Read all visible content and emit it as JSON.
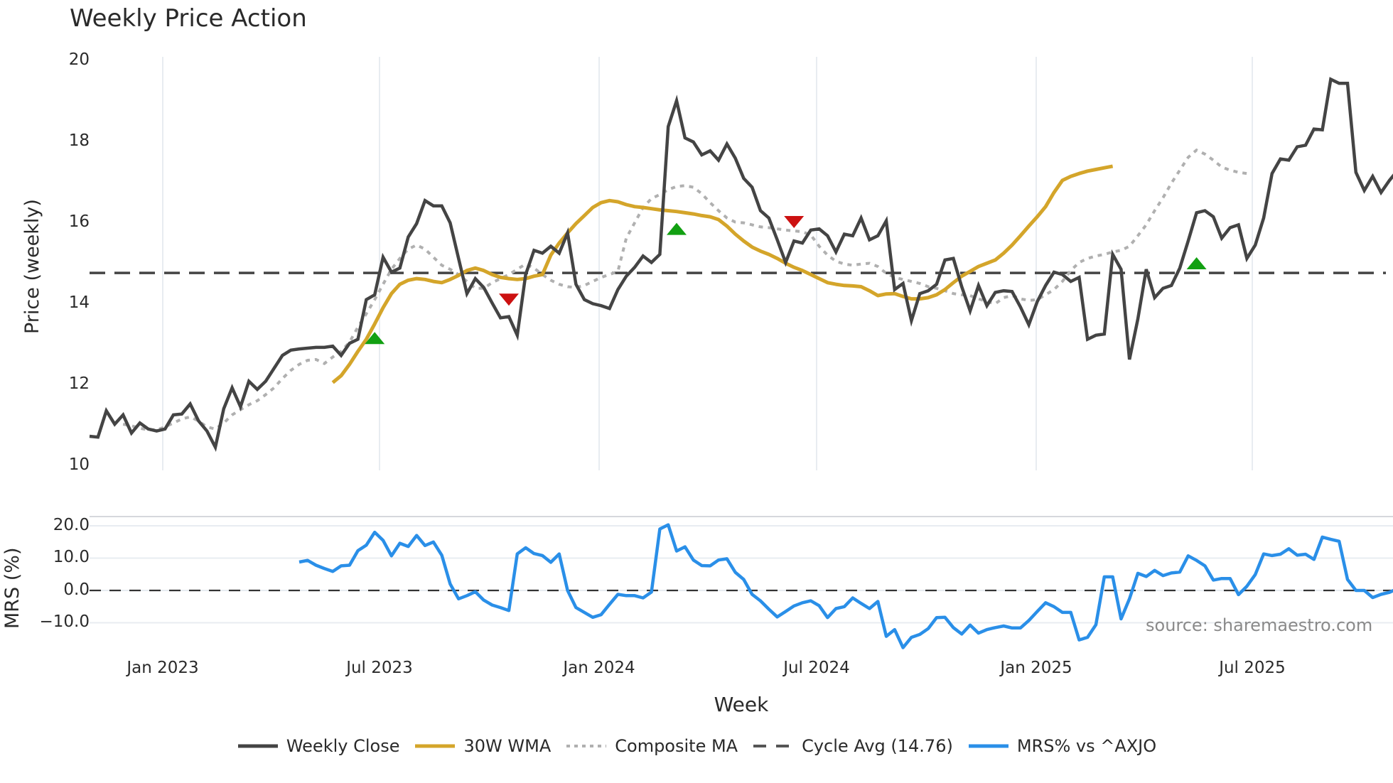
{
  "header": {
    "title": "Weekly Price Action"
  },
  "price_panel": {
    "ylabel": "Price (weekly)",
    "yticks": [
      "20",
      "18",
      "16",
      "14",
      "12",
      "10"
    ]
  },
  "mrs_panel": {
    "ylabel": "MRS (%)",
    "yticks": [
      "20.0",
      "10.0",
      "0.0",
      "−10.0"
    ]
  },
  "xaxis": {
    "title": "Week",
    "ticks": [
      "Jan 2023",
      "Jul 2023",
      "Jan 2024",
      "Jul 2024",
      "Jan 2025",
      "Jul 2025"
    ]
  },
  "watermark": "source: sharemaestro.com",
  "legend": [
    {
      "label": "Weekly Close",
      "style": "solid",
      "color": "#444444"
    },
    {
      "label": "30W WMA",
      "style": "solid",
      "color": "#D4A52A"
    },
    {
      "label": "Composite MA",
      "style": "dotted",
      "color": "#B0B0B0"
    },
    {
      "label": "Cycle Avg (14.76)",
      "style": "dashed",
      "color": "#555555"
    },
    {
      "label": "MRS% vs ^AXJO",
      "style": "solid",
      "color": "#2A8FE8"
    }
  ],
  "colors": {
    "close": "#444444",
    "wma": "#D4A52A",
    "composite": "#B0B0B0",
    "cycle": "#444444",
    "mrs": "#2A8FE8",
    "buy": "#12A012",
    "sell": "#CC1111",
    "grid": "#E8ECF1"
  },
  "chart_data": [
    {
      "type": "line",
      "title": "Weekly Price Action",
      "xlabel": "Week",
      "ylabel": "Price (weekly)",
      "ylim": [
        10,
        20
      ],
      "grid": {
        "x": true,
        "y": false
      },
      "legend_position": "bottom",
      "x_start": "2022-11-07",
      "x_step": "1 week",
      "x_ticks": [
        "Jan 2023",
        "Jul 2023",
        "Jan 2024",
        "Jul 2024",
        "Jan 2025",
        "Jul 2025"
      ],
      "series": [
        {
          "name": "Weekly Close",
          "values": [
            10.72,
            10.7,
            11.35,
            11.02,
            11.25,
            10.8,
            11.05,
            10.9,
            10.85,
            10.9,
            11.25,
            11.27,
            11.52,
            11.1,
            10.85,
            10.45,
            11.4,
            11.92,
            11.45,
            12.08,
            11.88,
            12.08,
            12.4,
            12.72,
            12.85,
            12.88,
            12.9,
            12.92,
            12.92,
            12.95,
            12.72,
            13.02,
            13.12,
            14.1,
            14.22,
            15.15,
            14.78,
            14.88,
            15.65,
            15.98,
            16.55,
            16.42,
            16.42,
            16.0,
            15.12,
            14.25,
            14.62,
            14.4,
            14.02,
            13.65,
            13.68,
            13.22,
            14.72,
            15.32,
            15.25,
            15.42,
            15.25,
            15.75,
            14.48,
            14.1,
            14.0,
            13.95,
            13.88,
            14.35,
            14.68,
            14.9,
            15.18,
            15.02,
            15.22,
            18.38,
            19.02,
            18.1,
            18.0,
            17.68,
            17.78,
            17.55,
            17.95,
            17.6,
            17.1,
            16.88,
            16.3,
            16.12,
            15.58,
            15.02,
            15.55,
            15.5,
            15.82,
            15.85,
            15.68,
            15.28,
            15.72,
            15.68,
            16.12,
            15.58,
            15.68,
            16.05,
            14.35,
            14.5,
            13.58,
            14.25,
            14.32,
            14.48,
            15.08,
            15.12,
            14.42,
            13.82,
            14.45,
            13.95,
            14.28,
            14.32,
            14.3,
            13.92,
            13.48,
            14.05,
            14.45,
            14.78,
            14.72,
            14.55,
            14.65,
            13.12,
            13.22,
            13.25,
            15.22,
            14.85,
            12.62,
            13.62,
            14.85,
            14.15,
            14.38,
            14.45,
            14.88,
            15.55,
            16.25,
            16.3,
            16.15,
            15.62,
            15.88,
            15.95,
            15.12,
            15.45,
            16.12,
            17.22,
            17.58,
            17.55,
            17.88,
            17.92,
            18.32,
            18.3,
            19.55,
            19.45,
            19.45,
            17.25,
            16.8,
            17.15,
            16.75,
            17.05,
            17.3
          ],
          "color": "#444444"
        },
        {
          "name": "30W WMA",
          "offset": 29,
          "values": [
            12.05,
            12.22,
            12.5,
            12.82,
            13.12,
            13.5,
            13.9,
            14.25,
            14.48,
            14.58,
            14.62,
            14.6,
            14.55,
            14.52,
            14.6,
            14.7,
            14.82,
            14.88,
            14.82,
            14.72,
            14.65,
            14.62,
            14.6,
            14.62,
            14.68,
            14.72,
            15.2,
            15.5,
            15.75,
            15.98,
            16.18,
            16.38,
            16.5,
            16.55,
            16.52,
            16.45,
            16.4,
            16.38,
            16.35,
            16.32,
            16.3,
            16.28,
            16.25,
            16.22,
            16.18,
            16.15,
            16.08,
            15.92,
            15.72,
            15.55,
            15.4,
            15.3,
            15.22,
            15.12,
            15.0,
            14.9,
            14.82,
            14.72,
            14.62,
            14.52,
            14.48,
            14.45,
            14.44,
            14.42,
            14.32,
            14.2,
            14.24,
            14.25,
            14.18,
            14.12,
            14.12,
            14.15,
            14.22,
            14.35,
            14.52,
            14.68,
            14.8,
            14.92,
            15.0,
            15.08,
            15.25,
            15.45,
            15.68,
            15.92,
            16.15,
            16.4,
            16.75,
            17.05,
            17.15,
            17.22,
            17.28,
            17.32,
            17.36,
            17.4
          ],
          "color": "#D4A52A"
        },
        {
          "name": "Composite MA",
          "offset": 4,
          "values": [
            11.02,
            10.98,
            10.92,
            10.88,
            10.88,
            10.95,
            11.05,
            11.15,
            11.2,
            11.1,
            10.95,
            10.9,
            11.05,
            11.25,
            11.38,
            11.5,
            11.6,
            11.75,
            11.92,
            12.15,
            12.35,
            12.5,
            12.6,
            12.62,
            12.52,
            12.68,
            12.82,
            13.05,
            13.42,
            13.75,
            14.1,
            14.48,
            14.85,
            15.12,
            15.35,
            15.45,
            15.35,
            15.15,
            14.95,
            14.85,
            14.72,
            14.55,
            14.38,
            14.38,
            14.52,
            14.62,
            14.72,
            14.85,
            14.98,
            14.88,
            14.72,
            14.58,
            14.48,
            14.42,
            14.4,
            14.45,
            14.55,
            14.65,
            14.72,
            14.8,
            15.62,
            16.0,
            16.38,
            16.6,
            16.7,
            16.82,
            16.9,
            16.92,
            16.88,
            16.72,
            16.5,
            16.3,
            16.12,
            16.02,
            16.0,
            15.95,
            15.9,
            15.88,
            15.85,
            15.82,
            15.8,
            15.78,
            15.7,
            15.42,
            15.2,
            15.05,
            14.98,
            14.95,
            14.98,
            15.0,
            14.92,
            14.75,
            14.65,
            14.6,
            14.55,
            14.5,
            14.42,
            14.38,
            14.32,
            14.25,
            14.22,
            14.2,
            14.12,
            14.05,
            14.0,
            14.15,
            14.2,
            14.12,
            14.08,
            14.1,
            14.22,
            14.35,
            14.55,
            14.82,
            15.02,
            15.12,
            15.18,
            15.22,
            15.28,
            15.32,
            15.42,
            15.68,
            15.95,
            16.3,
            16.62,
            16.98,
            17.3,
            17.62,
            17.8,
            17.7,
            17.55,
            17.38,
            17.3,
            17.25,
            17.22
          ],
          "color": "#B0B0B0"
        },
        {
          "name": "Cycle Avg (14.76)",
          "value": 14.76,
          "color": "#444444"
        }
      ],
      "markers": [
        {
          "type": "buy",
          "index": 34,
          "value": 13.15
        },
        {
          "type": "sell",
          "index": 50,
          "value": 14.1
        },
        {
          "type": "buy",
          "index": 70,
          "value": 15.85
        },
        {
          "type": "sell",
          "index": 84,
          "value": 16.02
        },
        {
          "type": "buy",
          "index": 132,
          "value": 15.0
        }
      ]
    },
    {
      "type": "line",
      "title": "",
      "ylabel": "MRS (%)",
      "ylim": [
        -18,
        22
      ],
      "yticks": [
        20,
        10,
        0,
        -10
      ],
      "grid": {
        "x": false,
        "y": true
      },
      "series": [
        {
          "name": "MRS% vs ^AXJO",
          "offset": 25,
          "values": [
            8.8,
            9.3,
            7.8,
            6.8,
            5.9,
            7.6,
            7.8,
            12.3,
            14.0,
            18.0,
            15.5,
            10.7,
            14.6,
            13.6,
            17.0,
            13.9,
            15.0,
            10.9,
            2.0,
            -2.6,
            -1.6,
            -0.4,
            -3.0,
            -4.5,
            -5.3,
            -6.2,
            11.3,
            13.2,
            11.4,
            10.8,
            8.7,
            11.3,
            0.0,
            -5.3,
            -6.8,
            -8.3,
            -7.5,
            -4.3,
            -1.2,
            -1.6,
            -1.6,
            -2.3,
            -0.5,
            19.0,
            20.3,
            12.2,
            13.5,
            9.4,
            7.7,
            7.6,
            9.4,
            9.8,
            5.6,
            3.4,
            -1.2,
            -3.2,
            -5.8,
            -8.2,
            -6.5,
            -4.8,
            -3.8,
            -3.2,
            -4.7,
            -8.4,
            -5.6,
            -5.0,
            -2.3,
            -4.0,
            -5.6,
            -3.4,
            -14.2,
            -12.1,
            -17.7,
            -14.5,
            -13.6,
            -11.8,
            -8.4,
            -8.3,
            -11.5,
            -13.5,
            -10.7,
            -13.2,
            -12.1,
            -11.5,
            -11.0,
            -11.6,
            -11.6,
            -9.3,
            -6.5,
            -3.8,
            -5.0,
            -6.8,
            -6.8,
            -15.3,
            -14.5,
            -10.6,
            4.2,
            4.2,
            -8.8,
            -2.6,
            5.3,
            4.3,
            6.2,
            4.6,
            5.4,
            5.7,
            10.7,
            9.3,
            7.6,
            3.2,
            3.7,
            3.7,
            -1.3,
            1.3,
            4.9,
            11.3,
            10.8,
            11.2,
            12.9,
            10.9,
            11.2,
            9.6,
            16.5,
            15.8,
            15.2,
            3.4,
            0.0,
            0.0,
            -2.2,
            -1.2,
            -0.6,
            0.6
          ],
          "color": "#2A8FE8"
        },
        {
          "name": "Zero line",
          "value": 0,
          "style": "dashed"
        }
      ]
    }
  ]
}
